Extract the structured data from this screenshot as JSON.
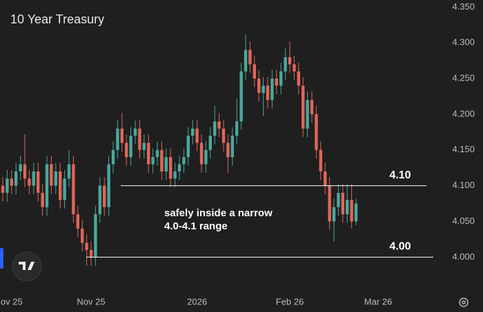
{
  "chart_data": {
    "type": "candlestick",
    "title": "10 Year Treasury",
    "categories": [
      null,
      null,
      "ov 25",
      null,
      null,
      null,
      null,
      null,
      null,
      null,
      null,
      null,
      null,
      null,
      null,
      null,
      null,
      null,
      null,
      null,
      "Nov 25",
      null,
      null,
      null,
      null,
      null,
      null,
      null,
      null,
      null,
      null,
      null,
      null,
      null,
      null,
      null,
      null,
      null,
      null,
      null,
      null,
      null,
      null,
      null,
      "2026",
      null,
      null,
      null,
      null,
      null,
      null,
      null,
      null,
      null,
      null,
      null,
      null,
      null,
      null,
      null,
      null,
      null,
      null,
      null,
      null,
      "Feb 26",
      null,
      null,
      null,
      null,
      null,
      null,
      null,
      null,
      null,
      null,
      null,
      null,
      null,
      null,
      null,
      null,
      null,
      null,
      null,
      "Mar 26",
      null,
      null,
      null,
      null,
      null,
      null,
      null,
      null,
      null,
      null,
      null,
      null
    ],
    "ohlc": [
      [
        4.1,
        4.112,
        4.078,
        4.09
      ],
      [
        4.09,
        4.122,
        4.078,
        4.11
      ],
      [
        4.11,
        4.122,
        4.088,
        4.1
      ],
      [
        4.1,
        4.132,
        4.088,
        4.12
      ],
      [
        4.12,
        4.142,
        4.108,
        4.13
      ],
      [
        4.13,
        4.172,
        4.098,
        4.11
      ],
      [
        4.11,
        4.122,
        4.088,
        4.1
      ],
      [
        4.1,
        4.132,
        4.088,
        4.12
      ],
      [
        4.12,
        4.132,
        4.078,
        4.09
      ],
      [
        4.09,
        4.102,
        4.058,
        4.07
      ],
      [
        4.07,
        4.142,
        4.058,
        4.13
      ],
      [
        4.13,
        4.142,
        4.088,
        4.1
      ],
      [
        4.1,
        4.132,
        4.088,
        4.12
      ],
      [
        4.12,
        4.132,
        4.068,
        4.08
      ],
      [
        4.08,
        4.122,
        4.068,
        4.11
      ],
      [
        4.11,
        4.15,
        4.098,
        4.13
      ],
      [
        4.13,
        4.142,
        4.048,
        4.06
      ],
      [
        4.06,
        4.072,
        4.028,
        4.04
      ],
      [
        4.04,
        4.052,
        4.008,
        4.02
      ],
      [
        4.02,
        4.032,
        3.988,
        4.01
      ],
      [
        4.01,
        4.022,
        3.988,
        4.0
      ],
      [
        4.0,
        4.072,
        3.988,
        4.06
      ],
      [
        4.06,
        4.112,
        4.048,
        4.1
      ],
      [
        4.1,
        4.112,
        4.058,
        4.07
      ],
      [
        4.07,
        4.142,
        4.058,
        4.13
      ],
      [
        4.13,
        4.162,
        4.118,
        4.15
      ],
      [
        4.15,
        4.192,
        4.138,
        4.18
      ],
      [
        4.18,
        4.202,
        4.148,
        4.16
      ],
      [
        4.16,
        4.172,
        4.128,
        4.14
      ],
      [
        4.14,
        4.182,
        4.128,
        4.17
      ],
      [
        4.17,
        4.192,
        4.158,
        4.18
      ],
      [
        4.18,
        4.192,
        4.138,
        4.15
      ],
      [
        4.15,
        4.172,
        4.138,
        4.16
      ],
      [
        4.16,
        4.172,
        4.118,
        4.13
      ],
      [
        4.13,
        4.152,
        4.118,
        4.14
      ],
      [
        4.14,
        4.162,
        4.128,
        4.15
      ],
      [
        4.15,
        4.162,
        4.108,
        4.12
      ],
      [
        4.12,
        4.152,
        4.108,
        4.14
      ],
      [
        4.14,
        4.152,
        4.098,
        4.11
      ],
      [
        4.11,
        4.132,
        4.098,
        4.12
      ],
      [
        4.12,
        4.142,
        4.108,
        4.13
      ],
      [
        4.13,
        4.152,
        4.118,
        4.14
      ],
      [
        4.14,
        4.182,
        4.128,
        4.17
      ],
      [
        4.17,
        4.192,
        4.158,
        4.18
      ],
      [
        4.18,
        4.192,
        4.148,
        4.16
      ],
      [
        4.16,
        4.172,
        4.118,
        4.13
      ],
      [
        4.13,
        4.162,
        4.118,
        4.15
      ],
      [
        4.15,
        4.182,
        4.138,
        4.17
      ],
      [
        4.17,
        4.212,
        4.158,
        4.19
      ],
      [
        4.19,
        4.202,
        4.168,
        4.18
      ],
      [
        4.18,
        4.192,
        4.148,
        4.16
      ],
      [
        4.16,
        4.172,
        4.118,
        4.14
      ],
      [
        4.14,
        4.182,
        4.128,
        4.17
      ],
      [
        4.17,
        4.222,
        4.158,
        4.19
      ],
      [
        4.19,
        4.272,
        4.178,
        4.26
      ],
      [
        4.26,
        4.312,
        4.248,
        4.29
      ],
      [
        4.29,
        4.302,
        4.258,
        4.27
      ],
      [
        4.27,
        4.282,
        4.238,
        4.25
      ],
      [
        4.25,
        4.262,
        4.218,
        4.23
      ],
      [
        4.23,
        4.252,
        4.198,
        4.24
      ],
      [
        4.24,
        4.252,
        4.208,
        4.22
      ],
      [
        4.22,
        4.262,
        4.208,
        4.25
      ],
      [
        4.25,
        4.262,
        4.228,
        4.24
      ],
      [
        4.24,
        4.272,
        4.228,
        4.26
      ],
      [
        4.26,
        4.292,
        4.248,
        4.28
      ],
      [
        4.28,
        4.302,
        4.258,
        4.27
      ],
      [
        4.27,
        4.282,
        4.248,
        4.26
      ],
      [
        4.26,
        4.272,
        4.228,
        4.24
      ],
      [
        4.24,
        4.252,
        4.168,
        4.18
      ],
      [
        4.18,
        4.232,
        4.168,
        4.22
      ],
      [
        4.22,
        4.232,
        4.188,
        4.2
      ],
      [
        4.2,
        4.212,
        4.138,
        4.15
      ],
      [
        4.15,
        4.162,
        4.108,
        4.12
      ],
      [
        4.12,
        4.132,
        4.088,
        4.1
      ],
      [
        4.1,
        4.112,
        4.038,
        4.05
      ],
      [
        4.05,
        4.082,
        4.022,
        4.07
      ],
      [
        4.07,
        4.102,
        4.058,
        4.09
      ],
      [
        4.09,
        4.102,
        4.048,
        4.06
      ],
      [
        4.06,
        4.102,
        4.048,
        4.08
      ],
      [
        4.08,
        4.102,
        4.04,
        4.05
      ],
      [
        4.05,
        4.082,
        4.045,
        4.075
      ],
      null,
      null,
      null,
      null,
      null,
      null,
      null,
      null,
      null,
      null,
      null,
      null,
      null,
      null,
      null,
      null,
      null
    ],
    "up_color": "#4aa89c",
    "down_color": "#e0665a",
    "ylim": [
      3.955,
      4.36
    ],
    "yticks": [
      {
        "value": 4.0,
        "label": "4.000"
      },
      {
        "value": 4.05,
        "label": "4.050"
      },
      {
        "value": 4.1,
        "label": "4.100"
      },
      {
        "value": 4.15,
        "label": "4.150"
      },
      {
        "value": 4.2,
        "label": "4.200"
      },
      {
        "value": 4.25,
        "label": "4.250"
      },
      {
        "value": 4.3,
        "label": "4.300"
      },
      {
        "value": 4.35,
        "label": "4.350"
      }
    ],
    "lines": [
      {
        "value": 4.1,
        "label": "4.10"
      },
      {
        "value": 4.0,
        "label": "4.00"
      }
    ],
    "annotation": [
      "safely inside a narrow",
      "4.0-4.1 range"
    ]
  }
}
